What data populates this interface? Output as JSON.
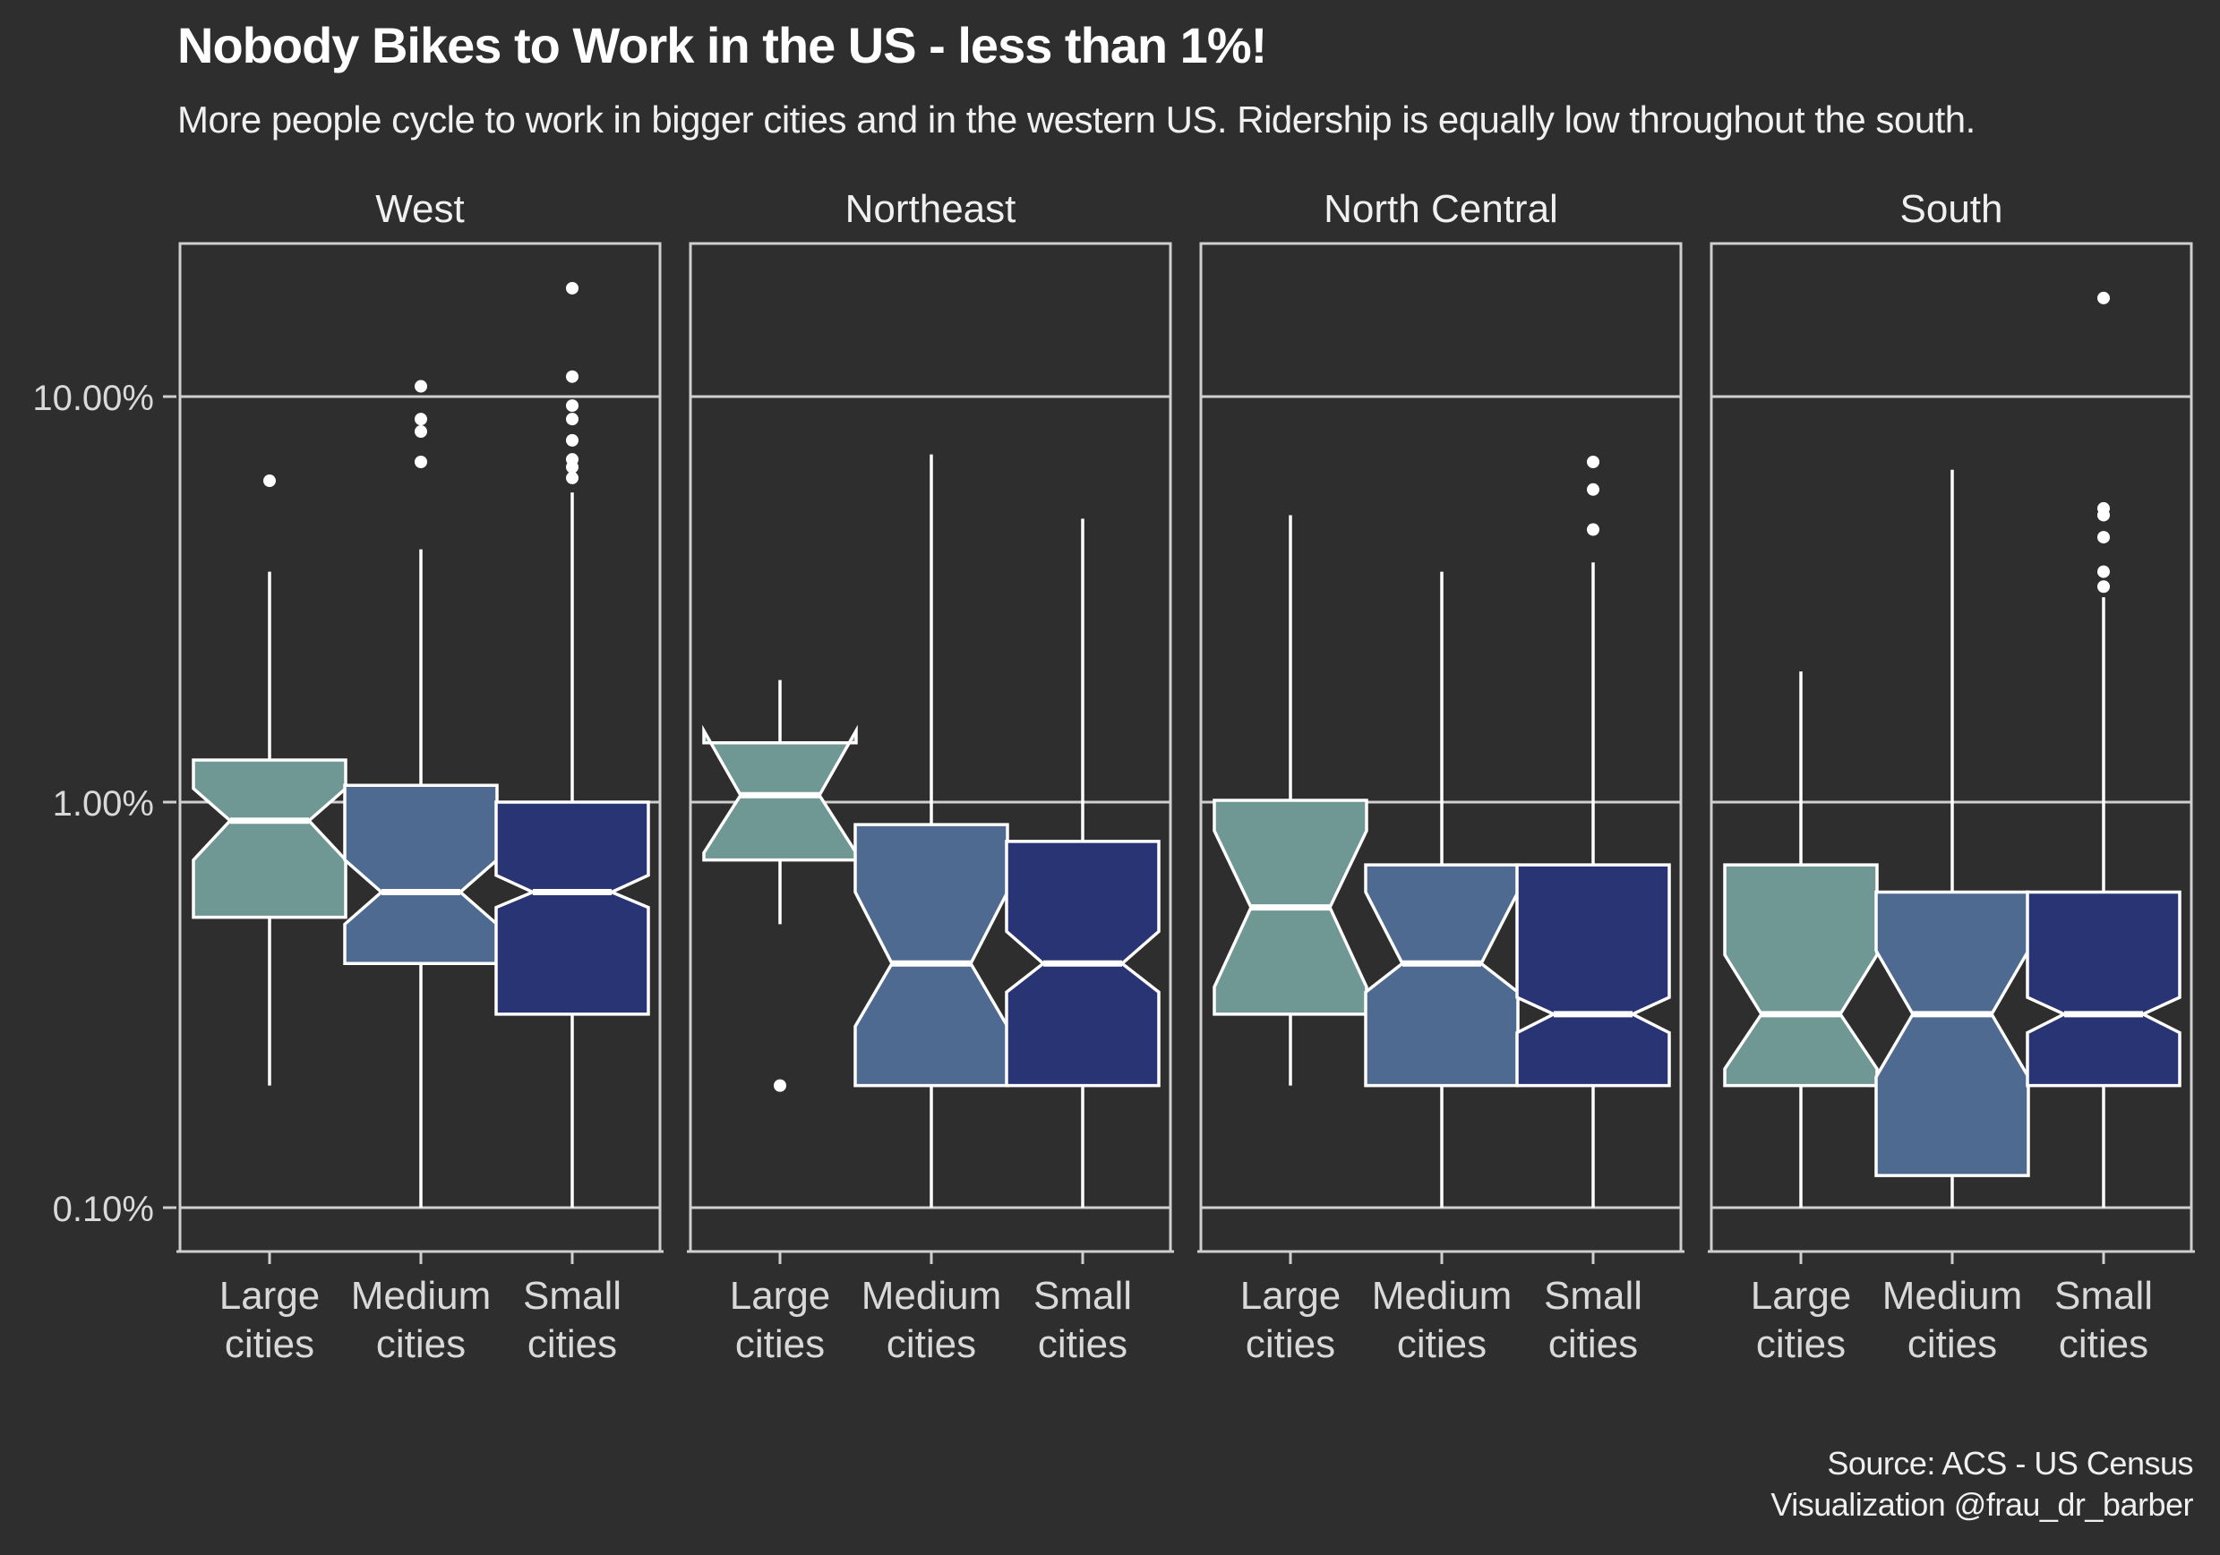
{
  "title": "Nobody Bikes to Work in the US - less than 1%!",
  "subtitle": "More people cycle to work in bigger cities and in the western US. Ridership is equally low throughout the south.",
  "caption": {
    "line1": "Source: ACS - US Census",
    "line2": "Visualization @frau_dr_barber"
  },
  "colors": {
    "background": "#2e2e2e",
    "large": "#6f9794",
    "medium": "#4e6a90",
    "small": "#283473",
    "outline": "#ffffff",
    "grid": "#cfcfcf"
  },
  "chart_data": {
    "type": "boxplot",
    "notched": true,
    "title": "Nobody Bikes to Work in the US - less than 1%!",
    "subtitle": "More people cycle to work in bigger cities and in the western US. Ridership is equally low throughout the south.",
    "y_scale": "log10",
    "y_unit": "percent",
    "ylim": [
      0.075,
      24
    ],
    "y_ticks": [
      {
        "value": 0.1,
        "label": "0.10%"
      },
      {
        "value": 1,
        "label": "1.00%"
      },
      {
        "value": 10,
        "label": "10.00%"
      }
    ],
    "categories": [
      {
        "key": "large",
        "line1": "Large",
        "line2": "cities"
      },
      {
        "key": "medium",
        "line1": "Medium",
        "line2": "cities"
      },
      {
        "key": "small",
        "line1": "Small",
        "line2": "cities"
      }
    ],
    "facets": [
      {
        "name": "West",
        "boxes": [
          {
            "category": "large",
            "whisker_low": 0.2,
            "q1": 0.52,
            "median": 0.9,
            "q3": 1.27,
            "whisker_high": 3.7,
            "notch_low": 0.72,
            "notch_high": 1.08,
            "outliers": [
              6.2
            ]
          },
          {
            "category": "medium",
            "whisker_low": 0.1,
            "q1": 0.4,
            "median": 0.6,
            "q3": 1.1,
            "whisker_high": 4.2,
            "notch_low": 0.5,
            "notch_high": 0.72,
            "outliers": [
              6.9,
              8.2,
              8.8,
              10.6
            ]
          },
          {
            "category": "small",
            "whisker_low": 0.1,
            "q1": 0.3,
            "median": 0.6,
            "q3": 1.0,
            "whisker_high": 5.8,
            "notch_low": 0.55,
            "notch_high": 0.66,
            "outliers": [
              6.3,
              6.7,
              7.0,
              7.8,
              8.8,
              9.5,
              11.2,
              18.5
            ]
          }
        ]
      },
      {
        "name": "Northeast",
        "boxes": [
          {
            "category": "large",
            "whisker_low": 0.5,
            "q1": 0.72,
            "median": 1.04,
            "q3": 1.4,
            "whisker_high": 2.0,
            "notch_low": 0.75,
            "notch_high": 1.5,
            "outliers": [
              0.2
            ]
          },
          {
            "category": "medium",
            "whisker_low": 0.1,
            "q1": 0.2,
            "median": 0.4,
            "q3": 0.88,
            "whisker_high": 7.2,
            "notch_low": 0.28,
            "notch_high": 0.6,
            "outliers": []
          },
          {
            "category": "small",
            "whisker_low": 0.1,
            "q1": 0.2,
            "median": 0.4,
            "q3": 0.8,
            "whisker_high": 5.0,
            "notch_low": 0.34,
            "notch_high": 0.48,
            "outliers": []
          }
        ]
      },
      {
        "name": "North Central",
        "boxes": [
          {
            "category": "large",
            "whisker_low": 0.2,
            "q1": 0.3,
            "median": 0.55,
            "q3": 1.01,
            "whisker_high": 5.1,
            "notch_low": 0.35,
            "notch_high": 0.85,
            "outliers": []
          },
          {
            "category": "medium",
            "whisker_low": 0.1,
            "q1": 0.2,
            "median": 0.4,
            "q3": 0.7,
            "whisker_high": 3.7,
            "notch_low": 0.34,
            "notch_high": 0.6,
            "outliers": []
          },
          {
            "category": "small",
            "whisker_low": 0.1,
            "q1": 0.2,
            "median": 0.3,
            "q3": 0.7,
            "whisker_high": 3.9,
            "notch_low": 0.27,
            "notch_high": 0.33,
            "outliers": [
              4.7,
              5.9,
              6.9
            ]
          }
        ]
      },
      {
        "name": "South",
        "boxes": [
          {
            "category": "large",
            "whisker_low": 0.1,
            "q1": 0.2,
            "median": 0.3,
            "q3": 0.7,
            "whisker_high": 2.1,
            "notch_low": 0.22,
            "notch_high": 0.42,
            "outliers": []
          },
          {
            "category": "medium",
            "whisker_low": 0.1,
            "q1": 0.12,
            "median": 0.3,
            "q3": 0.6,
            "whisker_high": 6.6,
            "notch_low": 0.21,
            "notch_high": 0.43,
            "outliers": []
          },
          {
            "category": "small",
            "whisker_low": 0.1,
            "q1": 0.2,
            "median": 0.3,
            "q3": 0.6,
            "whisker_high": 3.2,
            "notch_low": 0.27,
            "notch_high": 0.33,
            "outliers": [
              3.4,
              3.7,
              4.5,
              5.1,
              5.3,
              17.5
            ]
          }
        ]
      }
    ]
  }
}
